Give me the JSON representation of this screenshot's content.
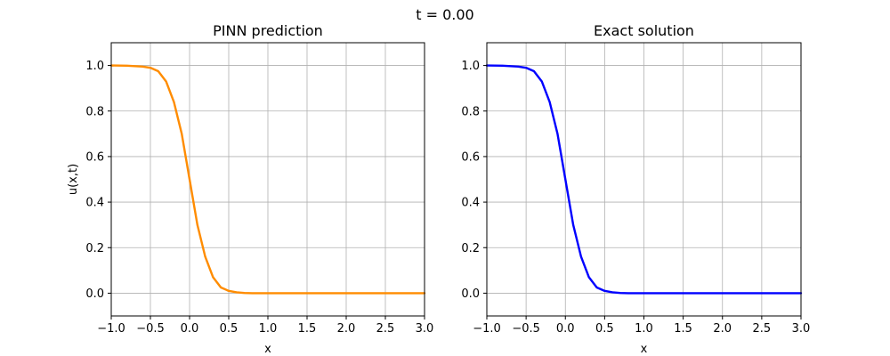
{
  "figure": {
    "suptitle": "t = 0.00"
  },
  "chart_data": [
    {
      "type": "line",
      "title": "PINN prediction",
      "xlabel": "x",
      "ylabel": "u(x,t)",
      "xlim": [
        -1.0,
        3.0
      ],
      "ylim": [
        -0.1,
        1.1
      ],
      "xticks": [
        "-1.0",
        "-0.5",
        "0.0",
        "0.5",
        "1.0",
        "1.5",
        "2.0",
        "2.5",
        "3.0"
      ],
      "yticks": [
        "0.0",
        "0.2",
        "0.4",
        "0.6",
        "0.8",
        "1.0"
      ],
      "grid": true,
      "line_color": "#ff8c00",
      "series": [
        {
          "x": [
            -1.0,
            -0.8,
            -0.6,
            -0.5,
            -0.4,
            -0.3,
            -0.2,
            -0.1,
            0.0,
            0.1,
            0.2,
            0.3,
            0.4,
            0.5,
            0.6,
            0.7,
            0.8,
            1.0,
            1.5,
            2.0,
            2.5,
            3.0
          ],
          "values": [
            1.0,
            0.999,
            0.995,
            0.99,
            0.975,
            0.93,
            0.84,
            0.7,
            0.5,
            0.3,
            0.16,
            0.07,
            0.025,
            0.01,
            0.004,
            0.001,
            0.0,
            0.0,
            0.0,
            0.0,
            0.0,
            0.0
          ]
        }
      ]
    },
    {
      "type": "line",
      "title": "Exact solution",
      "xlabel": "x",
      "ylabel": "",
      "xlim": [
        -1.0,
        3.0
      ],
      "ylim": [
        -0.1,
        1.1
      ],
      "xticks": [
        "-1.0",
        "-0.5",
        "0.0",
        "0.5",
        "1.0",
        "1.5",
        "2.0",
        "2.5",
        "3.0"
      ],
      "yticks": [
        "0.0",
        "0.2",
        "0.4",
        "0.6",
        "0.8",
        "1.0"
      ],
      "grid": true,
      "line_color": "#0000ff",
      "series": [
        {
          "x": [
            -1.0,
            -0.8,
            -0.6,
            -0.5,
            -0.4,
            -0.3,
            -0.2,
            -0.1,
            0.0,
            0.1,
            0.2,
            0.3,
            0.4,
            0.5,
            0.6,
            0.7,
            0.8,
            1.0,
            1.5,
            2.0,
            2.5,
            3.0
          ],
          "values": [
            1.0,
            0.999,
            0.995,
            0.99,
            0.975,
            0.93,
            0.84,
            0.7,
            0.5,
            0.3,
            0.16,
            0.07,
            0.025,
            0.01,
            0.004,
            0.001,
            0.0,
            0.0,
            0.0,
            0.0,
            0.0,
            0.0
          ]
        }
      ]
    }
  ]
}
